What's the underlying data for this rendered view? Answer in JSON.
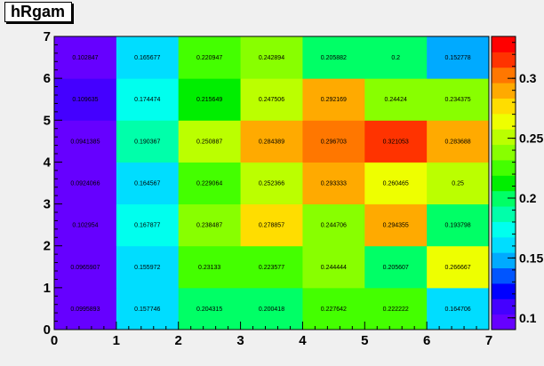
{
  "chart_data": {
    "type": "heatmap",
    "title": "hRgam",
    "xlabel": "",
    "ylabel": "",
    "xlim": [
      0,
      7
    ],
    "ylim": [
      0,
      7
    ],
    "x_ticks": [
      "0",
      "1",
      "2",
      "3",
      "4",
      "5",
      "6",
      "7"
    ],
    "y_ticks": [
      "0",
      "1",
      "2",
      "3",
      "4",
      "5",
      "6",
      "7"
    ],
    "grid": false,
    "colorbar": {
      "range": [
        0.0902,
        0.335
      ],
      "ticks": [
        "0.1",
        "0.15",
        "0.2",
        "0.25",
        "0.3"
      ],
      "tick_values": [
        0.1,
        0.15,
        0.2,
        0.25,
        0.3
      ],
      "palette": [
        "#6600ff",
        "#4400ff",
        "#0000ff",
        "#0055ff",
        "#00aaff",
        "#00ddff",
        "#00ffee",
        "#00ffaa",
        "#00ff66",
        "#00ee00",
        "#44ff00",
        "#88ff00",
        "#bbff00",
        "#eeff00",
        "#ffdd00",
        "#ffaa00",
        "#ff7700",
        "#ff3300",
        "#ff0000"
      ]
    },
    "rows_from_bottom": [
      [
        "0.0995893",
        "0.157746",
        "0.204315",
        "0.200418",
        "0.227642",
        "0.222222",
        "0.164706"
      ],
      [
        "0.0965907",
        "0.155972",
        "0.23133",
        "0.223577",
        "0.244444",
        "0.205607",
        "0.266667"
      ],
      [
        "0.102954",
        "0.167877",
        "0.238487",
        "0.278857",
        "0.244706",
        "0.294355",
        "0.193798"
      ],
      [
        "0.0924066",
        "0.164567",
        "0.229064",
        "0.252366",
        "0.293333",
        "0.260465",
        "0.25"
      ],
      [
        "0.0941385",
        "0.190367",
        "0.250887",
        "0.284389",
        "0.296703",
        "0.321053",
        "0.283688"
      ],
      [
        "0.109635",
        "0.174474",
        "0.215649",
        "0.247506",
        "0.292169",
        "0.24424",
        "0.234375"
      ],
      [
        "0.102847",
        "0.165677",
        "0.220947",
        "0.242894",
        "0.205882",
        "0.2",
        "0.152778"
      ]
    ]
  }
}
